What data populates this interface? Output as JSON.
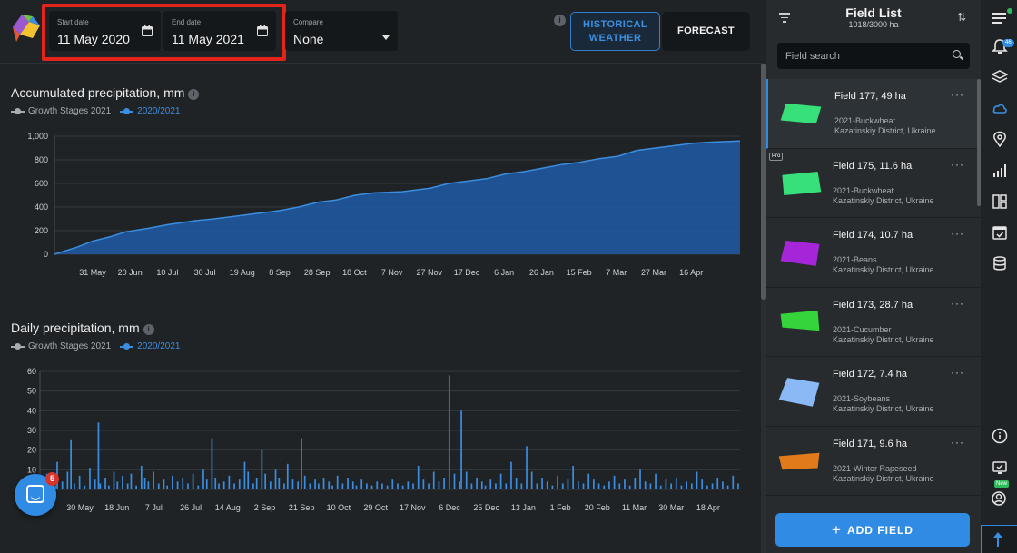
{
  "topbar": {
    "start_date": {
      "label": "Start date",
      "value": "11 May 2020"
    },
    "end_date": {
      "label": "End date",
      "value": "11 May 2021"
    },
    "compare": {
      "label": "Compare",
      "value": "None"
    },
    "historical_button": "HISTORICAL WEATHER",
    "forecast_button": "FORECAST"
  },
  "accumulated": {
    "title": "Accumulated precipitation, mm",
    "legend": [
      "Growth Stages 2021",
      "2020/2021"
    ]
  },
  "daily": {
    "title": "Daily precipitation, mm",
    "legend": [
      "Growth Stages 2021",
      "2020/2021"
    ]
  },
  "chat": {
    "badge": "5"
  },
  "field_panel": {
    "title": "Field List",
    "subtitle": "1018/3000 ha",
    "search_placeholder": "Field search",
    "add_button": "ADD FIELD",
    "fields": [
      {
        "name": "Field 177, 49 ha",
        "crop": "2021-Buckwheat",
        "location": "Kazatinskiy District, Ukraine",
        "color": "#38e07a",
        "pro": ""
      },
      {
        "name": "Field 175, 11.6 ha",
        "crop": "2021-Buckwheat",
        "location": "Kazatinskiy District, Ukraine",
        "color": "#38e07a",
        "pro": "Pro"
      },
      {
        "name": "Field 174, 10.7 ha",
        "crop": "2021-Beans",
        "location": "Kazatinskiy District, Ukraine",
        "color": "#a526d8",
        "pro": ""
      },
      {
        "name": "Field 173, 28.7 ha",
        "crop": "2021-Cucumber",
        "location": "Kazatinskiy District, Ukraine",
        "color": "#34d43a",
        "pro": ""
      },
      {
        "name": "Field 172, 7.4 ha",
        "crop": "2021-Soybeans",
        "location": "Kazatinskiy District, Ukraine",
        "color": "#8ab9f5",
        "pro": ""
      },
      {
        "name": "Field 171, 9.6 ha",
        "crop": "2021-Winter Rapeseed",
        "location": "Kazatinskiy District, Ukraine",
        "color": "#e07a1a",
        "pro": ""
      }
    ]
  },
  "rail": {
    "notifications_badge": "46",
    "new_badge": "New"
  },
  "icons": [
    "logo-icon",
    "calendar-icon",
    "info-icon",
    "filter-icon",
    "sort-icon",
    "search-icon",
    "more-icon",
    "menu-icon",
    "bell-icon",
    "layers-icon",
    "cloud-icon",
    "map-pin-icon",
    "signal-icon",
    "dashboard-icon",
    "calendar-check-icon",
    "database-icon",
    "info-circle-icon",
    "monitor-icon",
    "user-icon",
    "arrow-up-icon",
    "chat-icon",
    "plus-icon"
  ],
  "chart_data": [
    {
      "type": "area",
      "title": "Accumulated precipitation, mm",
      "xlabel": "",
      "ylabel": "",
      "ylim": [
        0,
        1000
      ],
      "yticks": [
        "0",
        "200",
        "400",
        "600",
        "800",
        "1,000"
      ],
      "xticks": [
        "31 May",
        "20 Jun",
        "10 Jul",
        "30 Jul",
        "19 Aug",
        "8 Sep",
        "28 Sep",
        "18 Oct",
        "7 Nov",
        "27 Nov",
        "17 Dec",
        "6 Jan",
        "26 Jan",
        "15 Feb",
        "7 Mar",
        "27 Mar",
        "16 Apr"
      ],
      "x_range": [
        "11 May 2020",
        "11 May 2021"
      ],
      "series": [
        {
          "name": "2020/2021",
          "color": "#3b8de0",
          "x": [
            0,
            4,
            12,
            20,
            30,
            38,
            50,
            60,
            75,
            85,
            100,
            120,
            130,
            140,
            150,
            160,
            170,
            185,
            200,
            210,
            220,
            230,
            240,
            250,
            260,
            270,
            280,
            290,
            300,
            310,
            320,
            330,
            340,
            350,
            365
          ],
          "values": [
            0,
            20,
            60,
            110,
            150,
            190,
            220,
            250,
            285,
            300,
            330,
            370,
            400,
            440,
            460,
            500,
            520,
            530,
            560,
            600,
            620,
            640,
            680,
            700,
            730,
            760,
            780,
            810,
            830,
            880,
            900,
            920,
            940,
            950,
            960
          ]
        }
      ]
    },
    {
      "type": "bar",
      "title": "Daily precipitation, mm",
      "xlabel": "",
      "ylabel": "",
      "ylim": [
        0,
        60
      ],
      "yticks": [
        "0",
        "10",
        "20",
        "30",
        "40",
        "50",
        "60"
      ],
      "xticks": [
        "30 May",
        "18 Jun",
        "7 Jul",
        "26 Jul",
        "14 Aug",
        "2 Sep",
        "21 Sep",
        "10 Oct",
        "29 Oct",
        "17 Nov",
        "6 Dec",
        "25 Dec",
        "13 Jan",
        "1 Feb",
        "20 Feb",
        "11 Mar",
        "30 Mar",
        "18 Apr"
      ],
      "x_range": [
        "11 May 2020",
        "11 May 2021"
      ],
      "series": [
        {
          "name": "2020/2021",
          "color": "#3b8de0",
          "values": [
            3,
            0,
            8,
            0,
            0,
            6,
            0,
            2,
            14,
            0,
            0,
            4,
            0,
            0,
            9,
            0,
            25,
            0,
            3,
            0,
            0,
            7,
            0,
            0,
            2,
            0,
            0,
            11,
            0,
            0,
            5,
            0,
            34,
            3,
            0,
            0,
            6,
            0,
            2,
            0,
            0,
            9,
            0,
            4,
            0,
            0,
            7,
            0,
            0,
            3,
            0,
            8,
            0,
            0,
            2,
            0,
            0,
            12,
            0,
            6,
            0,
            4,
            0,
            0,
            9,
            0,
            0,
            3,
            0,
            0,
            5,
            0,
            2,
            0,
            0,
            7,
            0,
            0,
            4,
            0,
            0,
            6,
            0,
            0,
            3,
            0,
            0,
            8,
            0,
            0,
            2,
            0,
            0,
            10,
            0,
            5,
            0,
            0,
            26,
            0,
            6,
            0,
            3,
            0,
            0,
            4,
            0,
            0,
            7,
            0,
            0,
            3,
            0,
            0,
            5,
            0,
            0,
            14,
            0,
            9,
            0,
            0,
            3,
            0,
            6,
            0,
            0,
            20,
            0,
            8,
            0,
            0,
            4,
            0,
            0,
            10,
            0,
            6,
            0,
            0,
            3,
            0,
            13,
            0,
            0,
            5,
            0,
            0,
            4,
            0,
            26,
            0,
            7,
            0,
            0,
            3,
            0,
            0,
            5,
            0,
            3,
            0,
            0,
            6,
            0,
            0,
            4,
            0,
            2,
            0,
            0,
            7,
            0,
            0,
            3,
            0,
            0,
            6,
            0,
            0,
            4,
            0,
            2,
            0,
            0,
            5,
            0,
            0,
            3,
            0,
            0,
            2,
            0,
            0,
            4,
            0,
            0,
            3,
            0,
            0,
            2,
            0,
            0,
            5,
            0,
            0,
            3,
            0,
            0,
            2,
            0,
            0,
            4,
            0,
            0,
            3,
            0,
            0,
            12,
            0,
            0,
            5,
            0,
            0,
            3,
            0,
            0,
            9,
            0,
            0,
            4,
            0,
            0,
            6,
            0,
            0,
            58,
            0,
            0,
            8,
            0,
            0,
            4,
            40,
            0,
            0,
            9,
            0,
            0,
            3,
            0,
            0,
            6,
            0,
            0,
            4,
            0,
            2,
            0,
            0,
            5,
            0,
            0,
            3,
            0,
            0,
            8,
            0,
            0,
            3,
            0,
            0,
            14,
            0,
            0,
            6,
            0,
            0,
            3,
            0,
            0,
            22,
            0,
            0,
            9,
            0,
            0,
            3,
            0,
            0,
            6,
            0,
            0,
            4,
            0,
            0,
            2,
            0,
            0,
            7,
            0,
            0,
            3,
            0,
            0,
            5,
            0,
            0,
            12,
            0,
            0,
            4,
            0,
            0,
            3,
            0,
            0,
            8,
            0,
            0,
            5,
            0,
            0,
            3,
            0,
            0,
            2,
            0,
            0,
            4,
            0,
            0,
            7,
            0,
            0,
            3,
            0,
            0,
            5,
            0,
            0,
            2,
            0,
            0,
            6,
            0,
            0,
            10,
            0,
            0,
            4,
            0,
            0,
            3,
            0,
            0,
            8,
            0,
            0,
            2,
            0,
            0,
            5,
            0,
            0,
            3,
            0,
            0,
            6,
            0,
            0,
            2,
            0,
            0,
            4,
            0,
            0,
            3,
            0,
            0,
            9,
            0,
            0,
            5,
            0,
            0,
            2,
            0,
            0,
            3,
            0,
            0,
            6,
            0,
            0,
            4,
            0,
            0,
            2,
            0,
            0,
            7,
            0,
            0,
            3
          ]
        }
      ]
    }
  ]
}
